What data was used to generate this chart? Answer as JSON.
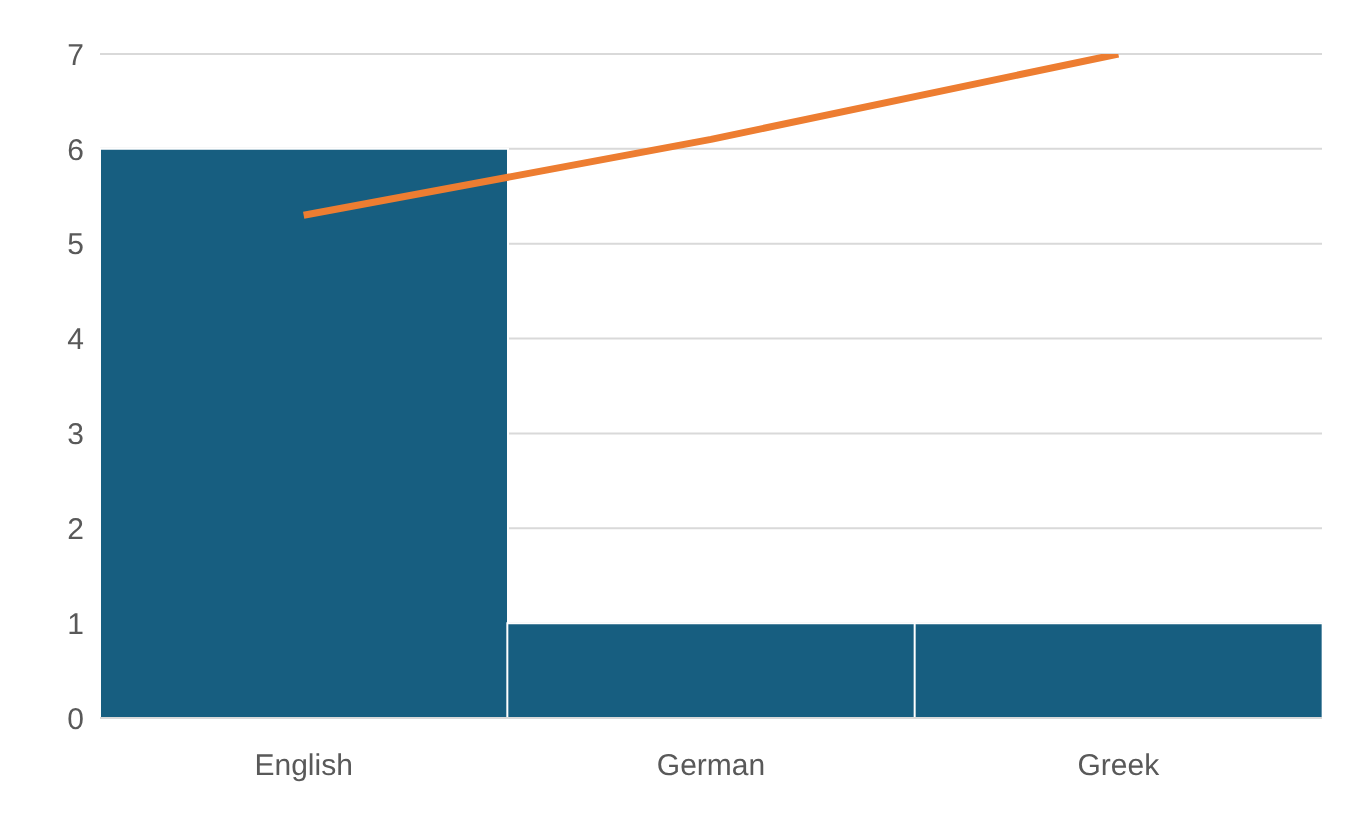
{
  "chart_data": {
    "type": "bar",
    "categories": [
      "English",
      "German",
      "Greek"
    ],
    "series": [
      {
        "color": "#175e80",
        "values": [
          6,
          1,
          1
        ]
      },
      {
        "type": "line",
        "color": "#ed7d31",
        "values": [
          5.3,
          6.1,
          7
        ]
      }
    ],
    "ylim": [
      0,
      7
    ],
    "yticks": [
      0,
      1,
      2,
      3,
      4,
      5,
      6,
      7
    ],
    "grid": "y",
    "marker": "none",
    "line_style": "solid"
  }
}
